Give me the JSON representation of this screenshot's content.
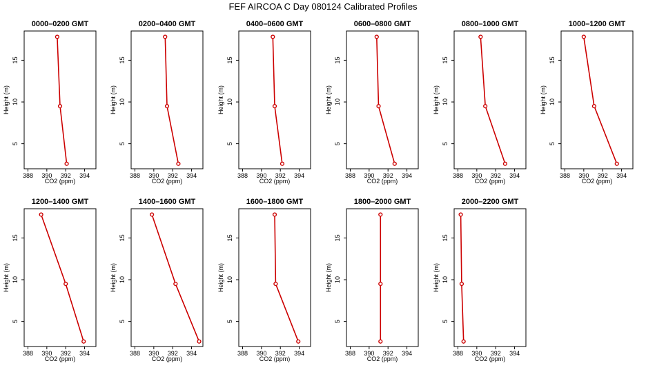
{
  "figure": {
    "title": "FEF AIRCOA C  Day 080124  Calibrated Profiles"
  },
  "chart_data": [
    {
      "type": "line",
      "title": "0000–0200 GMT",
      "xlabel": "CO2 (ppm)",
      "ylabel": "Height (m)",
      "xlim": [
        387.6,
        395.2
      ],
      "ylim": [
        2,
        18.5
      ],
      "xticks": [
        388,
        390,
        392,
        394
      ],
      "yticks": [
        5,
        10,
        15
      ],
      "color": "#cc0000",
      "x": [
        392.1,
        391.4,
        391.1
      ],
      "y": [
        2.6,
        9.5,
        17.8
      ]
    },
    {
      "type": "line",
      "title": "0200–0400 GMT",
      "xlabel": "CO2 (ppm)",
      "ylabel": "Height (m)",
      "xlim": [
        387.6,
        395.2
      ],
      "ylim": [
        2,
        18.5
      ],
      "xticks": [
        388,
        390,
        392,
        394
      ],
      "yticks": [
        5,
        10,
        15
      ],
      "color": "#cc0000",
      "x": [
        392.6,
        391.4,
        391.2
      ],
      "y": [
        2.6,
        9.5,
        17.8
      ]
    },
    {
      "type": "line",
      "title": "0400–0600 GMT",
      "xlabel": "CO2 (ppm)",
      "ylabel": "Height (m)",
      "xlim": [
        387.6,
        395.2
      ],
      "ylim": [
        2,
        18.5
      ],
      "xticks": [
        388,
        390,
        392,
        394
      ],
      "yticks": [
        5,
        10,
        15
      ],
      "color": "#cc0000",
      "x": [
        392.2,
        391.4,
        391.2
      ],
      "y": [
        2.6,
        9.5,
        17.8
      ]
    },
    {
      "type": "line",
      "title": "0600–0800 GMT",
      "xlabel": "CO2 (ppm)",
      "ylabel": "Height (m)",
      "xlim": [
        387.6,
        395.2
      ],
      "ylim": [
        2,
        18.5
      ],
      "xticks": [
        388,
        390,
        392,
        394
      ],
      "yticks": [
        5,
        10,
        15
      ],
      "color": "#cc0000",
      "x": [
        392.7,
        391.0,
        390.8
      ],
      "y": [
        2.6,
        9.5,
        17.8
      ]
    },
    {
      "type": "line",
      "title": "0800–1000 GMT",
      "xlabel": "CO2 (ppm)",
      "ylabel": "Height (m)",
      "xlim": [
        387.6,
        395.2
      ],
      "ylim": [
        2,
        18.5
      ],
      "xticks": [
        388,
        390,
        392,
        394
      ],
      "yticks": [
        5,
        10,
        15
      ],
      "color": "#cc0000",
      "x": [
        393.0,
        390.9,
        390.4
      ],
      "y": [
        2.6,
        9.5,
        17.8
      ]
    },
    {
      "type": "line",
      "title": "1000–1200 GMT",
      "xlabel": "CO2 (ppm)",
      "ylabel": "Height (m)",
      "xlim": [
        387.6,
        395.2
      ],
      "ylim": [
        2,
        18.5
      ],
      "xticks": [
        388,
        390,
        392,
        394
      ],
      "yticks": [
        5,
        10,
        15
      ],
      "color": "#cc0000",
      "x": [
        393.5,
        391.1,
        390.0
      ],
      "y": [
        2.6,
        9.5,
        17.8
      ]
    },
    {
      "type": "line",
      "title": "1200–1400 GMT",
      "xlabel": "CO2 (ppm)",
      "ylabel": "Height (m)",
      "xlim": [
        387.6,
        395.2
      ],
      "ylim": [
        2,
        18.5
      ],
      "xticks": [
        388,
        390,
        392,
        394
      ],
      "yticks": [
        5,
        10,
        15
      ],
      "color": "#cc0000",
      "x": [
        393.9,
        392.0,
        389.4
      ],
      "y": [
        2.6,
        9.5,
        17.8
      ]
    },
    {
      "type": "line",
      "title": "1400–1600 GMT",
      "xlabel": "CO2 (ppm)",
      "ylabel": "Height (m)",
      "xlim": [
        387.6,
        395.2
      ],
      "ylim": [
        2,
        18.5
      ],
      "xticks": [
        388,
        390,
        392,
        394
      ],
      "yticks": [
        5,
        10,
        15
      ],
      "color": "#cc0000",
      "x": [
        394.8,
        392.3,
        389.8
      ],
      "y": [
        2.6,
        9.5,
        17.8
      ]
    },
    {
      "type": "line",
      "title": "1600–1800 GMT",
      "xlabel": "CO2 (ppm)",
      "ylabel": "Height (m)",
      "xlim": [
        387.6,
        395.2
      ],
      "ylim": [
        2,
        18.5
      ],
      "xticks": [
        388,
        390,
        392,
        394
      ],
      "yticks": [
        5,
        10,
        15
      ],
      "color": "#cc0000",
      "x": [
        393.9,
        391.5,
        391.4
      ],
      "y": [
        2.6,
        9.5,
        17.8
      ]
    },
    {
      "type": "line",
      "title": "1800–2000 GMT",
      "xlabel": "CO2 (ppm)",
      "ylabel": "Height (m)",
      "xlim": [
        387.6,
        395.2
      ],
      "ylim": [
        2,
        18.5
      ],
      "xticks": [
        388,
        390,
        392,
        394
      ],
      "yticks": [
        5,
        10,
        15
      ],
      "color": "#cc0000",
      "x": [
        391.2,
        391.2,
        391.2
      ],
      "y": [
        2.6,
        9.5,
        17.8
      ]
    },
    {
      "type": "line",
      "title": "2000–2200 GMT",
      "xlabel": "CO2 (ppm)",
      "ylabel": "Height (m)",
      "xlim": [
        387.6,
        395.2
      ],
      "ylim": [
        2,
        18.5
      ],
      "xticks": [
        388,
        390,
        392,
        394
      ],
      "yticks": [
        5,
        10,
        15
      ],
      "color": "#cc0000",
      "x": [
        388.6,
        388.4,
        388.3
      ],
      "y": [
        2.6,
        9.5,
        17.8
      ]
    }
  ]
}
